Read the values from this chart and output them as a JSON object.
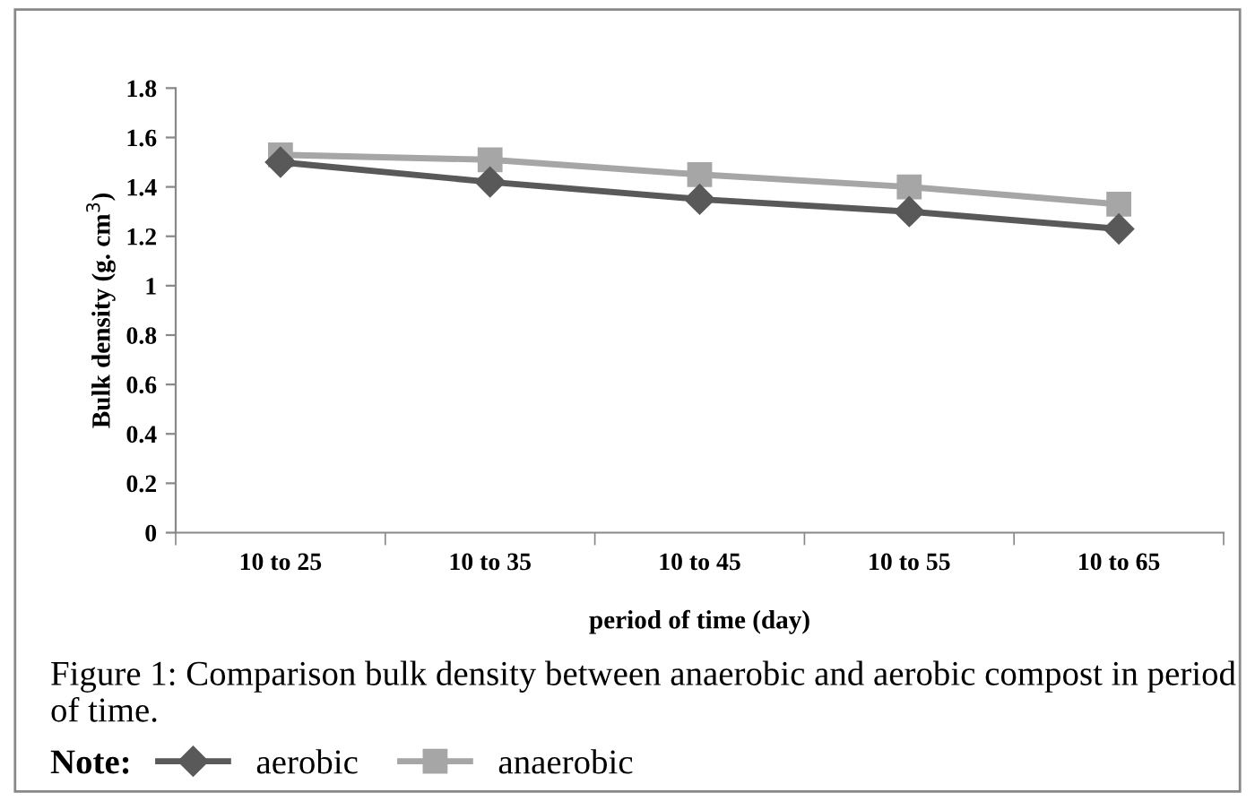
{
  "chart_data": {
    "type": "line",
    "categories": [
      "10 to 25",
      "10 to 35",
      "10 to 45",
      "10 to 55",
      "10 to 65"
    ],
    "series": [
      {
        "name": "aerobic",
        "color": "#595959",
        "marker": "diamond",
        "values": [
          1.5,
          1.42,
          1.35,
          1.3,
          1.23
        ]
      },
      {
        "name": "anaerobic",
        "color": "#a6a6a6",
        "marker": "square",
        "values": [
          1.53,
          1.51,
          1.45,
          1.4,
          1.33
        ]
      }
    ],
    "xlabel": "period of time (day)",
    "ylabel": "Bulk density (g. cm$^{3}$)",
    "ylim": [
      0,
      1.8
    ],
    "yticks": [
      0,
      0.2,
      0.4,
      0.6,
      0.8,
      1,
      1.2,
      1.4,
      1.6,
      1.8
    ],
    "grid": false,
    "legend": "bottom",
    "legend_title": "Note:",
    "line_style": "solid",
    "annotations": [
      "Figure 1: Comparison bulk density between anaerobic and aerobic compost in period of time."
    ]
  }
}
